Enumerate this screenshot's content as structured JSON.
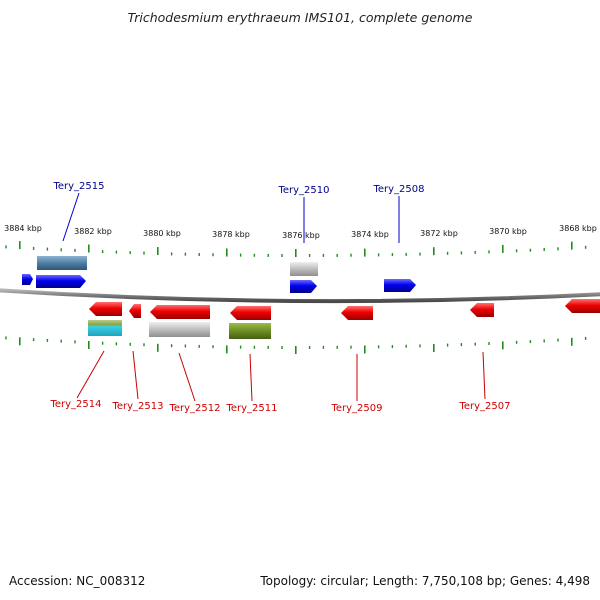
{
  "title": "Trichodesmium erythraeum IMS101, complete genome",
  "footer": {
    "accession": "Accession: NC_008312",
    "topology": "Topology: circular; Length: 7,750,108 bp; Genes: 4,498"
  },
  "colors": {
    "forward_gene": "#0000ee",
    "reverse_gene": "#ee0000",
    "backbone": "#808080",
    "tick": "#228b22",
    "forward_label": "#00008b",
    "reverse_label": "#cc0000"
  },
  "scale_labels": [
    "3884 kbp",
    "3882 kbp",
    "3880 kbp",
    "3878 kbp",
    "3876 kbp",
    "3874 kbp",
    "3872 kbp",
    "3870 kbp",
    "3868 kbp"
  ],
  "genes": [
    {
      "name": "Tery_2515",
      "strand": "forward"
    },
    {
      "name": "Tery_2510",
      "strand": "forward"
    },
    {
      "name": "Tery_2508",
      "strand": "forward"
    },
    {
      "name": "Tery_2514",
      "strand": "reverse"
    },
    {
      "name": "Tery_2513",
      "strand": "reverse"
    },
    {
      "name": "Tery_2512",
      "strand": "reverse"
    },
    {
      "name": "Tery_2511",
      "strand": "reverse"
    },
    {
      "name": "Tery_2509",
      "strand": "reverse"
    },
    {
      "name": "Tery_2507",
      "strand": "reverse"
    }
  ]
}
